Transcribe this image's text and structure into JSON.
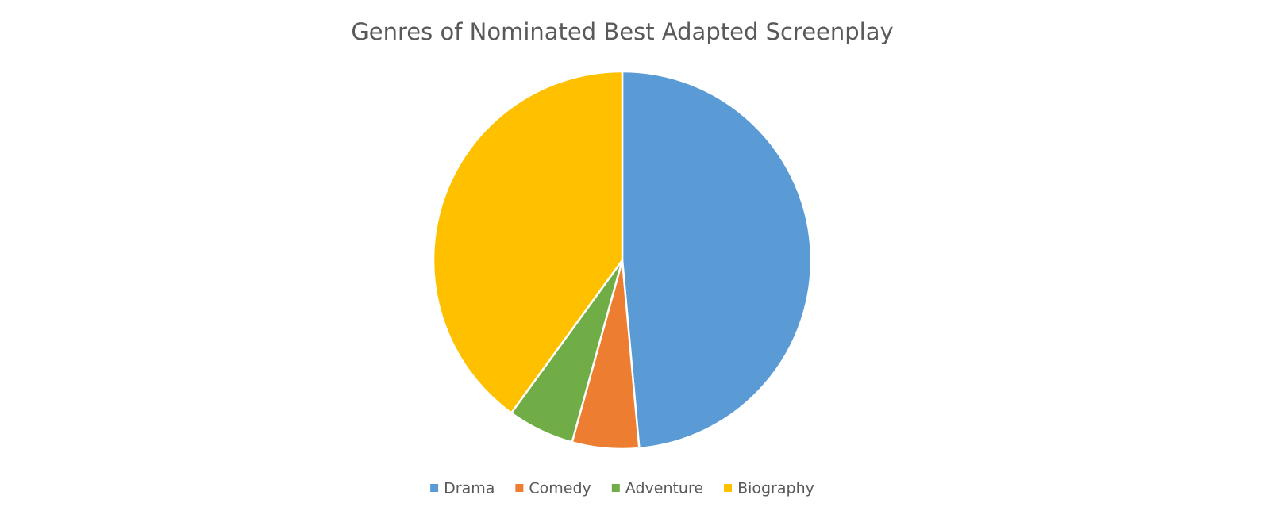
{
  "chart_data": {
    "type": "pie",
    "title": "Genres of Nominated Best Adapted Screenplay",
    "categories": [
      "Drama",
      "Comedy",
      "Adventure",
      "Biography"
    ],
    "values": [
      17,
      2,
      2,
      14
    ],
    "colors": [
      "#5b9bd5",
      "#ed7d31",
      "#70ad47",
      "#ffc000"
    ],
    "legend": "bottom"
  }
}
